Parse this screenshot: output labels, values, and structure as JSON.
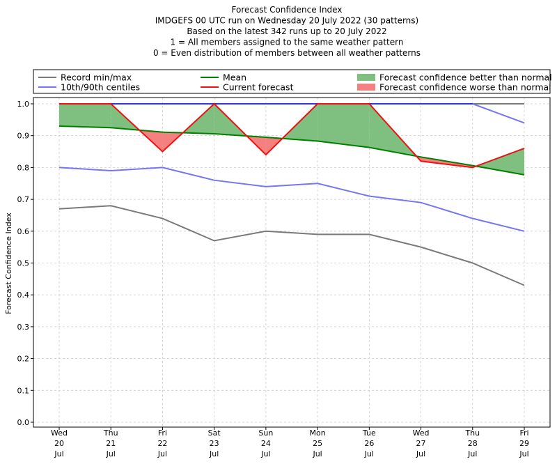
{
  "chart_data": {
    "type": "line",
    "title_lines": [
      "Forecast Confidence Index",
      "IMDGEFS 00 UTC run on Wednesday 20 July 2022 (30 patterns)",
      "Based on the latest 342 runs up to 20 July 2022",
      "1 = All members assigned to the same weather pattern",
      "0 = Even distribution of members between all weather patterns"
    ],
    "ylabel": "Forecast Confidence Index",
    "xlabel": "",
    "ylim": [
      0,
      1
    ],
    "yticks": [
      "0.0",
      "0.1",
      "0.2",
      "0.3",
      "0.4",
      "0.5",
      "0.6",
      "0.7",
      "0.8",
      "0.9",
      "1.0"
    ],
    "grid": true,
    "legend_position": "top",
    "categories": [
      [
        "Wed",
        "20",
        "Jul"
      ],
      [
        "Thu",
        "21",
        "Jul"
      ],
      [
        "Fri",
        "22",
        "Jul"
      ],
      [
        "Sat",
        "23",
        "Jul"
      ],
      [
        "Sun",
        "24",
        "Jul"
      ],
      [
        "Mon",
        "25",
        "Jul"
      ],
      [
        "Tue",
        "26",
        "Jul"
      ],
      [
        "Wed",
        "27",
        "Jul"
      ],
      [
        "Thu",
        "28",
        "Jul"
      ],
      [
        "Fri",
        "29",
        "Jul"
      ]
    ],
    "series": {
      "record_min": [
        0.67,
        0.68,
        0.64,
        0.57,
        0.6,
        0.59,
        0.59,
        0.55,
        0.5,
        0.43
      ],
      "record_max": [
        1.0,
        1.0,
        1.0,
        1.0,
        1.0,
        1.0,
        1.0,
        1.0,
        1.0,
        1.0
      ],
      "centile_10": [
        0.8,
        0.79,
        0.8,
        0.76,
        0.74,
        0.75,
        0.71,
        0.69,
        0.64,
        0.6
      ],
      "centile_90": [
        1.0,
        1.0,
        1.0,
        1.0,
        1.0,
        1.0,
        1.0,
        1.0,
        1.0,
        0.94
      ],
      "mean": [
        0.93,
        0.925,
        0.911,
        0.906,
        0.895,
        0.883,
        0.863,
        0.833,
        0.806,
        0.777
      ],
      "current": [
        1.0,
        1.0,
        0.85,
        1.0,
        0.84,
        1.0,
        1.0,
        0.82,
        0.8,
        0.86
      ]
    },
    "legend": [
      {
        "label": "Record min/max",
        "color": "#7a7a7a",
        "kind": "line"
      },
      {
        "label": "Mean",
        "color": "#008000",
        "kind": "line"
      },
      {
        "label": "Forecast confidence better than normal",
        "color": "#7fbf7f",
        "kind": "patch"
      },
      {
        "label": "10th/90th centiles",
        "color": "#7575f5",
        "kind": "line"
      },
      {
        "label": "Current forecast",
        "color": "#f01010",
        "kind": "line"
      },
      {
        "label": "Forecast confidence worse than normal",
        "color": "#f58080",
        "kind": "patch"
      }
    ],
    "colors": {
      "record": "#7a7a7a",
      "centiles": "#7575f5",
      "centile_90_top": "#3333dd",
      "mean": "#008000",
      "current": "#f01010",
      "better_fill": "#7fbf7f",
      "worse_fill": "#f58080",
      "grid": "#cccccc"
    }
  }
}
